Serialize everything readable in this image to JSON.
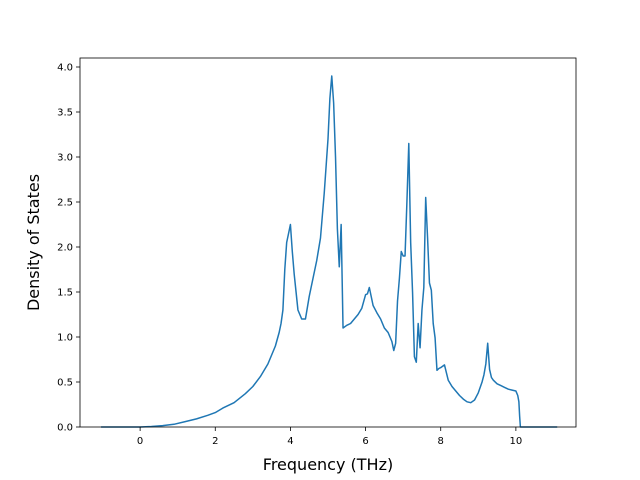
{
  "chart_data": {
    "type": "line",
    "title": "",
    "xlabel": "Frequency (THz)",
    "ylabel": "Density of States",
    "xlim": [
      -1.6,
      11.6
    ],
    "ylim": [
      0.0,
      4.1
    ],
    "xticks": [
      0,
      2,
      4,
      6,
      8,
      10
    ],
    "yticks": [
      0.0,
      0.5,
      1.0,
      1.5,
      2.0,
      2.5,
      3.0,
      3.5,
      4.0
    ],
    "xtick_labels": [
      "0",
      "2",
      "4",
      "6",
      "8",
      "10"
    ],
    "ytick_labels": [
      "0.0",
      "0.5",
      "1.0",
      "1.5",
      "2.0",
      "2.5",
      "3.0",
      "3.5",
      "4.0"
    ],
    "grid": false,
    "legend": false,
    "line_color": "#1f77b4",
    "series": [
      {
        "x": [
          -1.04,
          -0.5,
          0.0,
          0.3,
          0.6,
          0.9,
          1.2,
          1.5,
          1.8,
          2.0,
          2.2,
          2.5,
          2.8,
          3.0,
          3.2,
          3.4,
          3.5,
          3.6,
          3.7,
          3.75,
          3.8,
          3.85,
          3.9,
          3.95,
          4.0,
          4.05,
          4.1,
          4.15,
          4.2,
          4.3,
          4.4,
          4.5,
          4.6,
          4.7,
          4.8,
          4.9,
          4.95,
          5.0,
          5.05,
          5.1,
          5.15,
          5.2,
          5.25,
          5.3,
          5.35,
          5.4,
          5.5,
          5.6,
          5.7,
          5.8,
          5.9,
          6.0,
          6.05,
          6.1,
          6.15,
          6.2,
          6.3,
          6.4,
          6.5,
          6.6,
          6.7,
          6.75,
          6.8,
          6.85,
          6.9,
          6.95,
          7.0,
          7.05,
          7.1,
          7.15,
          7.2,
          7.25,
          7.3,
          7.35,
          7.4,
          7.45,
          7.5,
          7.55,
          7.6,
          7.65,
          7.7,
          7.75,
          7.8,
          7.85,
          7.9,
          7.95,
          8.0,
          8.1,
          8.2,
          8.3,
          8.4,
          8.5,
          8.6,
          8.7,
          8.8,
          8.9,
          9.0,
          9.1,
          9.15,
          9.2,
          9.25,
          9.3,
          9.35,
          9.4,
          9.5,
          9.6,
          9.7,
          9.8,
          9.9,
          10.0,
          10.02,
          10.05,
          10.08,
          10.1,
          10.12,
          10.2,
          10.5,
          11.1
        ],
        "y": [
          0.0,
          0.0,
          0.0,
          0.005,
          0.015,
          0.03,
          0.06,
          0.09,
          0.13,
          0.16,
          0.21,
          0.27,
          0.37,
          0.45,
          0.56,
          0.7,
          0.8,
          0.9,
          1.05,
          1.15,
          1.3,
          1.75,
          2.05,
          2.15,
          2.25,
          1.95,
          1.7,
          1.5,
          1.3,
          1.2,
          1.2,
          1.45,
          1.65,
          1.85,
          2.1,
          2.6,
          2.9,
          3.2,
          3.65,
          3.9,
          3.6,
          3.0,
          2.2,
          1.78,
          2.25,
          1.1,
          1.13,
          1.15,
          1.2,
          1.25,
          1.32,
          1.47,
          1.48,
          1.55,
          1.45,
          1.35,
          1.27,
          1.2,
          1.1,
          1.05,
          0.95,
          0.85,
          0.93,
          1.4,
          1.65,
          1.95,
          1.9,
          1.9,
          2.5,
          3.15,
          2.05,
          1.5,
          0.78,
          0.72,
          1.15,
          0.88,
          1.3,
          1.55,
          2.55,
          2.1,
          1.6,
          1.52,
          1.15,
          0.99,
          0.63,
          0.65,
          0.66,
          0.69,
          0.52,
          0.45,
          0.4,
          0.35,
          0.31,
          0.28,
          0.27,
          0.3,
          0.38,
          0.5,
          0.58,
          0.7,
          0.93,
          0.64,
          0.55,
          0.52,
          0.48,
          0.46,
          0.44,
          0.42,
          0.41,
          0.4,
          0.38,
          0.35,
          0.28,
          0.12,
          0.0,
          0.0,
          0.0,
          0.0
        ]
      }
    ]
  }
}
